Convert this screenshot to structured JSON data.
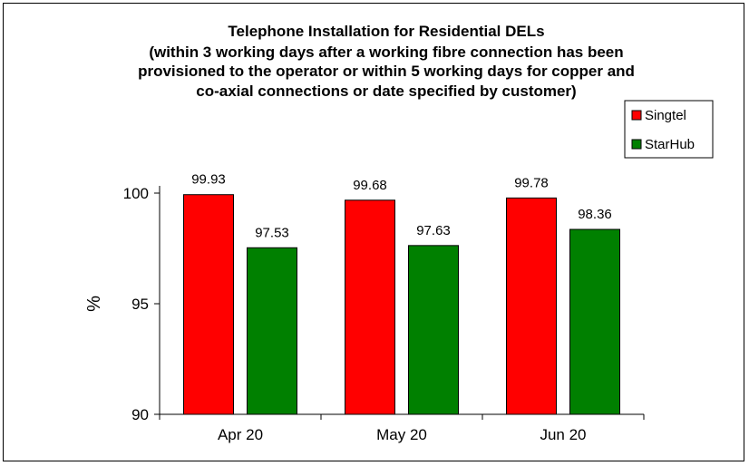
{
  "chart_data": {
    "type": "bar",
    "title_lines": [
      "Telephone Installation for Residential DELs",
      "(within 3 working days after a working fibre connection has been",
      "provisioned to the operator or within 5 working days for copper and",
      "co-axial connections or date specified by customer)"
    ],
    "categories": [
      "Apr 20",
      "May 20",
      "Jun 20"
    ],
    "series": [
      {
        "name": "Singtel",
        "values": [
          99.93,
          99.68,
          99.78
        ],
        "color": "#ff0000"
      },
      {
        "name": "StarHub",
        "values": [
          97.53,
          97.63,
          98.36
        ],
        "color": "#008000"
      }
    ],
    "value_labels": [
      [
        "99.93",
        "99.68",
        "99.78"
      ],
      [
        "97.53",
        "97.63",
        "98.36"
      ]
    ],
    "ylabel": "%",
    "ylim": [
      90,
      100
    ],
    "yticks": [
      90,
      95,
      100
    ],
    "ytick_labels": [
      "90",
      "95",
      "100"
    ],
    "grid": false,
    "legend_position": "right"
  }
}
